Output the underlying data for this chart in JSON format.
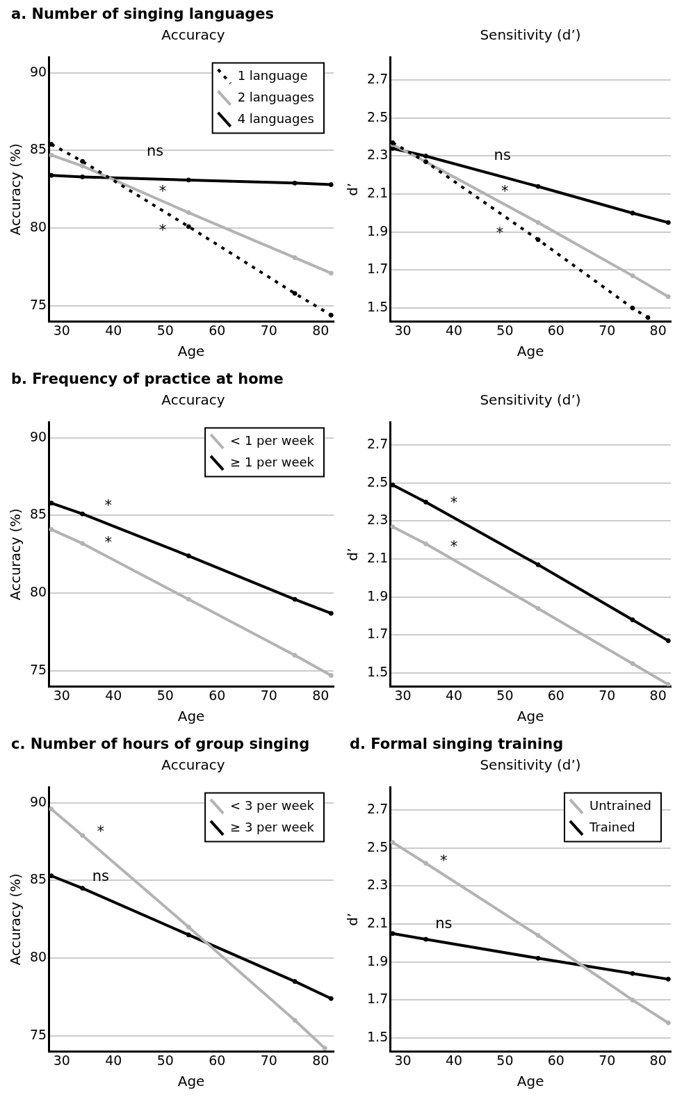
{
  "chart_data": [
    {
      "type": "line",
      "title": "a. Number of singing languages",
      "subtitle": "Accuracy",
      "xlabel": "Age",
      "ylabel": "Accuracy (%)",
      "xlim": [
        27.5,
        82.5
      ],
      "ylim": [
        74,
        91
      ],
      "xticks": [
        30,
        40,
        50,
        60,
        70,
        80
      ],
      "yticks": [
        75,
        80,
        85,
        90
      ],
      "grid": "y",
      "legend": "top right",
      "marker": "circle",
      "x": [
        28,
        34,
        54.5,
        75,
        82
      ],
      "series": [
        {
          "name": "1 language",
          "color": "#000000",
          "line_style": "dotted",
          "values": [
            85.4,
            84.3,
            80.1,
            75.8,
            74.4
          ]
        },
        {
          "name": "2 languages",
          "color": "#b3b3b3",
          "values": [
            84.7,
            84.0,
            81.0,
            78.1,
            77.1
          ]
        },
        {
          "name": "4 languages",
          "color": "#000000",
          "values": [
            83.4,
            83.3,
            83.1,
            82.9,
            82.8
          ]
        }
      ],
      "annotations": [
        "ns",
        "*",
        "*"
      ]
    },
    {
      "type": "line",
      "subtitle": "Sensitivity (d’)",
      "xlabel": "Age",
      "ylabel": "d’",
      "xlim": [
        27.5,
        82.5
      ],
      "ylim": [
        1.43,
        2.82
      ],
      "xticks": [
        30,
        40,
        50,
        60,
        70,
        80
      ],
      "yticks": [
        1.5,
        1.7,
        1.9,
        2.1,
        2.3,
        2.5,
        2.7
      ],
      "grid": "y",
      "marker": "circle",
      "x": [
        28,
        34.5,
        56.5,
        75,
        82
      ],
      "series": [
        {
          "color": "#000000",
          "line_style": "dotted",
          "x": [
            28,
            34.5,
            56.5,
            75,
            78
          ],
          "values": [
            2.37,
            2.27,
            1.86,
            1.5,
            1.45
          ]
        },
        {
          "color": "#b3b3b3",
          "values": [
            2.36,
            2.27,
            1.95,
            1.67,
            1.56
          ]
        },
        {
          "color": "#000000",
          "values": [
            2.34,
            2.3,
            2.14,
            2.0,
            1.95
          ]
        }
      ],
      "annotations": [
        "ns",
        "*",
        "*"
      ]
    },
    {
      "type": "line",
      "title": "b. Frequency of practice at home",
      "subtitle": "Accuracy",
      "xlabel": "Age",
      "ylabel": "Accuracy (%)",
      "xlim": [
        27.5,
        82.5
      ],
      "ylim": [
        74,
        91
      ],
      "xticks": [
        30,
        40,
        50,
        60,
        70,
        80
      ],
      "yticks": [
        75,
        80,
        85,
        90
      ],
      "grid": "y",
      "legend": "top right",
      "marker": "circle",
      "x": [
        28,
        34,
        54.5,
        75,
        82
      ],
      "series": [
        {
          "name": "< 1 per week",
          "color": "#b3b3b3",
          "values": [
            84.1,
            83.2,
            79.6,
            76.0,
            74.7
          ]
        },
        {
          "name": "≥ 1 per week",
          "color": "#000000",
          "values": [
            85.8,
            85.1,
            82.4,
            79.6,
            78.7
          ]
        }
      ],
      "annotations": [
        "*",
        "*"
      ]
    },
    {
      "type": "line",
      "subtitle": "Sensitivity (d’)",
      "xlabel": "Age",
      "ylabel": "d’",
      "xlim": [
        27.5,
        82.5
      ],
      "ylim": [
        1.43,
        2.82
      ],
      "xticks": [
        30,
        40,
        50,
        60,
        70,
        80
      ],
      "yticks": [
        1.5,
        1.7,
        1.9,
        2.1,
        2.3,
        2.5,
        2.7
      ],
      "grid": "y",
      "marker": "circle",
      "x": [
        28,
        34.5,
        56.5,
        75,
        82
      ],
      "series": [
        {
          "color": "#b3b3b3",
          "values": [
            2.27,
            2.18,
            1.84,
            1.55,
            1.44
          ]
        },
        {
          "color": "#000000",
          "values": [
            2.49,
            2.4,
            2.07,
            1.78,
            1.67
          ]
        }
      ],
      "annotations": [
        "*",
        "*"
      ]
    },
    {
      "type": "line",
      "title": "c. Number of hours of group singing",
      "subtitle": "Accuracy",
      "xlabel": "Age",
      "ylabel": "Accuracy (%)",
      "xlim": [
        27.5,
        82.5
      ],
      "ylim": [
        74,
        91
      ],
      "xticks": [
        30,
        40,
        50,
        60,
        70,
        80
      ],
      "yticks": [
        75,
        80,
        85,
        90
      ],
      "grid": "y",
      "legend": "top right",
      "marker": "circle",
      "x": [
        28,
        34,
        54.5,
        75,
        82
      ],
      "series": [
        {
          "name": "< 3 per week",
          "color": "#b3b3b3",
          "x": [
            28,
            34,
            54.5,
            75,
            80.8
          ],
          "values": [
            89.6,
            87.9,
            82.0,
            76.0,
            74.2
          ]
        },
        {
          "name": "≥ 3 per week",
          "color": "#000000",
          "values": [
            85.3,
            84.5,
            81.5,
            78.5,
            77.4
          ]
        }
      ],
      "annotations": [
        "*",
        "ns"
      ]
    },
    {
      "type": "line",
      "title": "d. Formal singing training",
      "subtitle": "Sensitivity (d’)",
      "xlabel": "Age",
      "ylabel": "d’",
      "xlim": [
        27.5,
        82.5
      ],
      "ylim": [
        1.43,
        2.82
      ],
      "xticks": [
        30,
        40,
        50,
        60,
        70,
        80
      ],
      "yticks": [
        1.5,
        1.7,
        1.9,
        2.1,
        2.3,
        2.5,
        2.7
      ],
      "grid": "y",
      "legend": "top right",
      "marker": "circle",
      "x": [
        28,
        34.5,
        56.5,
        75,
        82
      ],
      "series": [
        {
          "name": "Untrained",
          "color": "#b3b3b3",
          "values": [
            2.53,
            2.42,
            2.04,
            1.7,
            1.58
          ]
        },
        {
          "name": "Trained",
          "color": "#000000",
          "values": [
            2.05,
            2.02,
            1.92,
            1.84,
            1.81
          ]
        }
      ],
      "annotations": [
        "*",
        "ns"
      ]
    }
  ]
}
